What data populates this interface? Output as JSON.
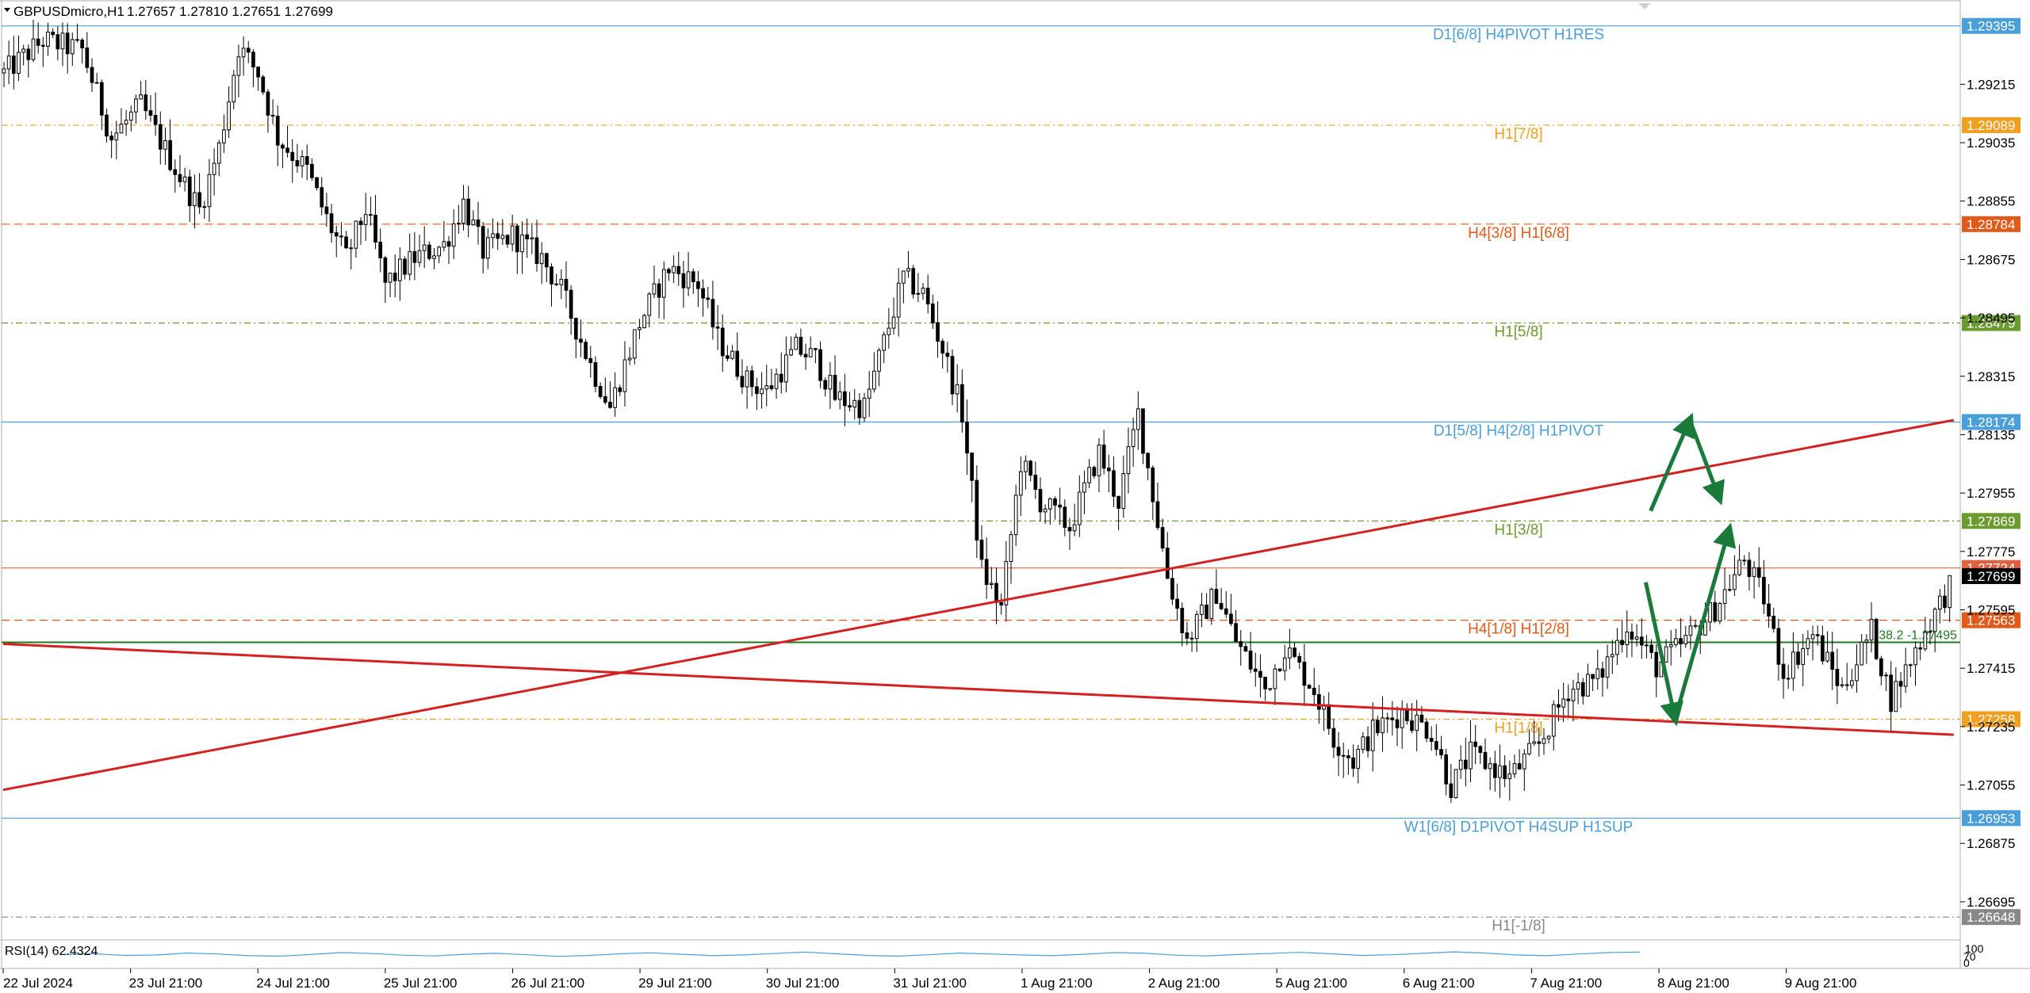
{
  "header": {
    "symbol": "GBPUSDmicro,H1",
    "ohlc": "1.27657 1.27810 1.27651 1.27699"
  },
  "chart_data": {
    "type": "candlestick",
    "timeframe": "H1",
    "ylim": [
      1.2658,
      1.2947
    ],
    "x_labels": [
      "22 Jul 2024",
      "23 Jul 21:00",
      "24 Jul 21:00",
      "25 Jul 21:00",
      "26 Jul 21:00",
      "29 Jul 21:00",
      "30 Jul 21:00",
      "31 Jul 21:00",
      "1 Aug 21:00",
      "2 Aug 21:00",
      "5 Aug 21:00",
      "6 Aug 21:00",
      "7 Aug 21:00",
      "8 Aug 21:00",
      "9 Aug 21:00"
    ],
    "y_ticks": [
      "1.29215",
      "1.29035",
      "1.28855",
      "1.28675",
      "1.28495",
      "1.28315",
      "1.28135",
      "1.27955",
      "1.27775",
      "1.27595",
      "1.27415",
      "1.27235",
      "1.27055",
      "1.26875",
      "1.26695"
    ],
    "price_path": [
      [
        0,
        1.2925
      ],
      [
        8,
        1.2935
      ],
      [
        16,
        1.2932
      ],
      [
        22,
        1.2905
      ],
      [
        28,
        1.2915
      ],
      [
        36,
        1.2893
      ],
      [
        40,
        1.2883
      ],
      [
        44,
        1.2902
      ],
      [
        48,
        1.2933
      ],
      [
        52,
        1.2925
      ],
      [
        56,
        1.2905
      ],
      [
        62,
        1.2895
      ],
      [
        66,
        1.288
      ],
      [
        70,
        1.2868
      ],
      [
        74,
        1.2883
      ],
      [
        78,
        1.286
      ],
      [
        84,
        1.2868
      ],
      [
        90,
        1.2872
      ],
      [
        94,
        1.2885
      ],
      [
        98,
        1.287
      ],
      [
        104,
        1.2875
      ],
      [
        110,
        1.2868
      ],
      [
        114,
        1.2858
      ],
      [
        120,
        1.2835
      ],
      [
        124,
        1.2822
      ],
      [
        130,
        1.2848
      ],
      [
        136,
        1.2865
      ],
      [
        142,
        1.286
      ],
      [
        146,
        1.2843
      ],
      [
        152,
        1.283
      ],
      [
        156,
        1.2827
      ],
      [
        162,
        1.284
      ],
      [
        166,
        1.2837
      ],
      [
        170,
        1.2825
      ],
      [
        176,
        1.2822
      ],
      [
        180,
        1.2842
      ],
      [
        184,
        1.2862
      ],
      [
        188,
        1.2857
      ],
      [
        192,
        1.284
      ],
      [
        196,
        1.282
      ],
      [
        200,
        1.2772
      ],
      [
        204,
        1.276
      ],
      [
        208,
        1.2805
      ],
      [
        212,
        1.2793
      ],
      [
        218,
        1.2785
      ],
      [
        224,
        1.2808
      ],
      [
        228,
        1.2793
      ],
      [
        232,
        1.282
      ],
      [
        238,
        1.277
      ],
      [
        242,
        1.275
      ],
      [
        248,
        1.2765
      ],
      [
        252,
        1.275
      ],
      [
        258,
        1.2735
      ],
      [
        262,
        1.2748
      ],
      [
        268,
        1.2735
      ],
      [
        272,
        1.272
      ],
      [
        276,
        1.2713
      ],
      [
        280,
        1.2722
      ],
      [
        286,
        1.2728
      ],
      [
        292,
        1.2722
      ],
      [
        296,
        1.2705
      ],
      [
        300,
        1.2715
      ],
      [
        308,
        1.2708
      ],
      [
        314,
        1.2718
      ],
      [
        320,
        1.2735
      ],
      [
        326,
        1.2738
      ],
      [
        332,
        1.2755
      ],
      [
        338,
        1.2742
      ],
      [
        344,
        1.275
      ],
      [
        350,
        1.276
      ],
      [
        356,
        1.2775
      ],
      [
        360,
        1.2763
      ],
      [
        364,
        1.274
      ],
      [
        370,
        1.2752
      ],
      [
        376,
        1.2735
      ],
      [
        382,
        1.2753
      ],
      [
        386,
        1.2732
      ],
      [
        392,
        1.275
      ],
      [
        398,
        1.2767
      ]
    ],
    "levels": [
      {
        "price": 1.29395,
        "label": "D1[6/8] H4PIVOT H1RES",
        "tag": "1.29395",
        "color": "#4a9fd8",
        "style": "solid"
      },
      {
        "price": 1.29089,
        "label": "H1[7/8]",
        "tag": "1.29089",
        "color": "#f0a020",
        "style": "dashdot"
      },
      {
        "price": 1.28784,
        "label": "H4[3/8] H1[6/8]",
        "tag": "1.28784",
        "color": "#e05a1c",
        "style": "dash"
      },
      {
        "price": 1.28479,
        "label": "H1[5/8]",
        "tag": "1.28479",
        "color": "#6b9a2e",
        "style": "dashdot"
      },
      {
        "price": 1.28174,
        "label": "D1[5/8] H4[2/8] H1PIVOT",
        "tag": "1.28174",
        "color": "#4a9fd8",
        "style": "solid"
      },
      {
        "price": 1.27869,
        "label": "H1[3/8]",
        "tag": "1.27869",
        "color": "#6b9a2e",
        "style": "dashdot"
      },
      {
        "price": 1.27724,
        "label": "",
        "tag": "1.27724",
        "color": "#e06040",
        "style": "solid"
      },
      {
        "price": 1.27563,
        "label": "H4[1/8] H1[2/8]",
        "tag": "1.27563",
        "color": "#e05a1c",
        "style": "dash"
      },
      {
        "price": 1.27258,
        "label": "H1[1/8]",
        "tag": "1.27258",
        "color": "#f0a020",
        "style": "dashdot"
      },
      {
        "price": 1.26953,
        "label": "W1[6/8] D1PIVOT H4SUP H1SUP",
        "tag": "1.26953",
        "color": "#4a9fd8",
        "style": "solid"
      },
      {
        "price": 1.26648,
        "label": "H1[-1/8]",
        "tag": "1.26648",
        "color": "#888888",
        "style": "dashdot"
      }
    ],
    "fib_line": {
      "price": 1.27495,
      "label": "38.2 -1.27495",
      "color": "#1e7a1e"
    },
    "current_price": {
      "price": 1.27699,
      "tag": "1.27699"
    },
    "trendlines": [
      {
        "name": "rising-trendline",
        "x1": 0,
        "y1": 1.2704,
        "x2": 399,
        "y2": 1.2818
      },
      {
        "name": "falling-trendline",
        "x1": 0,
        "y1": 1.2749,
        "x2": 399,
        "y2": 1.2721
      }
    ],
    "forecast_arrows": [
      {
        "name": "forecast-arrow-up-then-down",
        "points": [
          [
            337,
            1.279
          ],
          [
            345,
            1.2818
          ],
          [
            351,
            1.2794
          ]
        ]
      },
      {
        "name": "forecast-arrow-down-then-up",
        "points": [
          [
            336,
            1.2768
          ],
          [
            342,
            1.2726
          ],
          [
            353,
            1.2784
          ]
        ]
      }
    ]
  },
  "indicator": {
    "label": "RSI(14) 62.4324",
    "scale_top": "100",
    "scale_bottom": "0",
    "scale_mid": "70",
    "values": [
      52,
      55,
      48,
      50,
      58,
      54,
      47,
      45,
      52,
      60,
      56,
      49,
      46,
      53,
      57,
      51,
      44,
      48,
      55,
      59,
      53,
      47,
      50,
      56,
      62,
      55,
      48,
      45,
      51,
      58,
      54,
      50,
      47,
      53,
      60,
      57,
      49,
      46,
      52,
      56,
      61,
      55,
      48,
      51,
      57,
      63,
      58,
      50,
      47,
      54,
      60,
      62
    ]
  }
}
